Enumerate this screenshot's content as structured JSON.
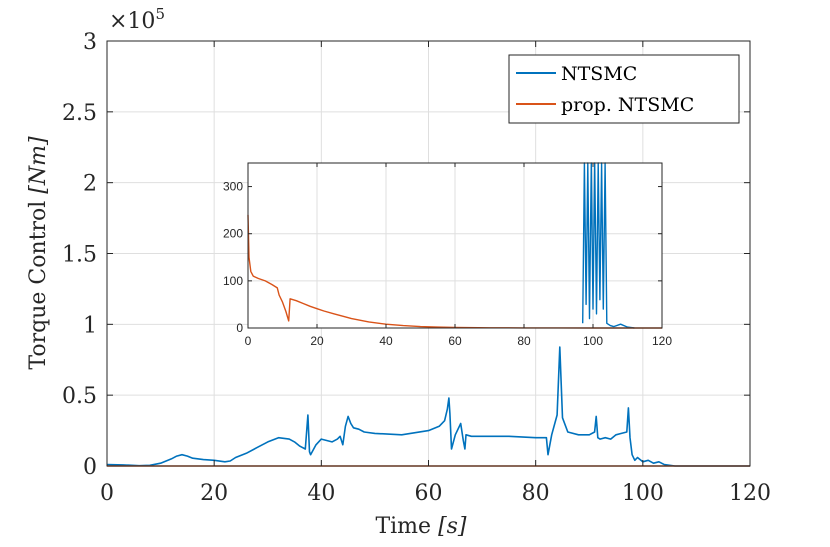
{
  "chart_data": [
    {
      "type": "line",
      "title": "",
      "xlabel": "Time [s]",
      "xlabel_main": "Time ",
      "xlabel_unit": "[s]",
      "ylabel": "Torque Control [Nm]",
      "ylabel_main": "Torque Control ",
      "ylabel_unit": "[Nm]",
      "y_multiplier_label": "×10",
      "y_multiplier_exp": "5",
      "xlim": [
        0,
        120
      ],
      "ylim": [
        0,
        3
      ],
      "xticks": [
        0,
        20,
        40,
        60,
        80,
        100,
        120
      ],
      "yticks": [
        0,
        0.5,
        1,
        1.5,
        2,
        2.5,
        3
      ],
      "xtick_labels": [
        "0",
        "20",
        "40",
        "60",
        "80",
        "100",
        "120"
      ],
      "ytick_labels": [
        "0",
        "0.5",
        "1",
        "1.5",
        "2",
        "2.5",
        "3"
      ],
      "grid": true,
      "legend_position": "top-right",
      "series": [
        {
          "name": "NTSMC",
          "color": "#0072BD",
          "x": [
            0,
            3,
            6,
            8,
            10,
            12,
            13,
            14,
            15,
            16,
            18,
            20,
            22,
            23,
            24,
            26,
            28,
            30,
            32,
            34,
            35,
            36,
            37,
            37.5,
            37.8,
            38,
            39,
            40,
            41,
            42,
            43,
            43.5,
            44,
            44.5,
            45,
            45.5,
            46,
            47,
            48,
            50,
            55,
            60,
            62,
            63,
            63.5,
            63.8,
            64,
            64.3,
            65,
            66,
            66.5,
            66.8,
            67,
            68,
            70,
            75,
            80,
            82,
            82.3,
            83,
            84,
            84.5,
            85,
            86,
            88,
            90,
            91,
            91.3,
            91.6,
            92,
            93,
            94,
            95,
            96,
            97,
            97.3,
            97.6,
            98,
            98.5,
            99,
            100,
            101,
            102,
            103,
            104,
            106,
            110,
            115,
            120
          ],
          "y": [
            0.01,
            0.008,
            0.002,
            0.005,
            0.02,
            0.05,
            0.07,
            0.08,
            0.07,
            0.055,
            0.045,
            0.04,
            0.03,
            0.035,
            0.06,
            0.09,
            0.13,
            0.17,
            0.2,
            0.19,
            0.17,
            0.14,
            0.12,
            0.36,
            0.1,
            0.08,
            0.15,
            0.19,
            0.18,
            0.17,
            0.19,
            0.21,
            0.15,
            0.28,
            0.35,
            0.3,
            0.27,
            0.26,
            0.24,
            0.23,
            0.22,
            0.25,
            0.28,
            0.32,
            0.4,
            0.48,
            0.37,
            0.12,
            0.22,
            0.3,
            0.18,
            0.12,
            0.22,
            0.21,
            0.21,
            0.21,
            0.2,
            0.2,
            0.08,
            0.22,
            0.36,
            0.84,
            0.34,
            0.24,
            0.22,
            0.22,
            0.24,
            0.35,
            0.2,
            0.19,
            0.2,
            0.19,
            0.22,
            0.23,
            0.24,
            0.41,
            0.2,
            0.08,
            0.04,
            0.06,
            0.03,
            0.04,
            0.02,
            0.03,
            0.01,
            0.0,
            0.0,
            0.0,
            0.0
          ]
        },
        {
          "name": "prop. NTSMC",
          "color": "#D95319",
          "x": [
            0,
            120
          ],
          "y": [
            0,
            0
          ]
        }
      ]
    },
    {
      "type": "line",
      "title": "",
      "xlim": [
        0,
        120
      ],
      "ylim": [
        0,
        350
      ],
      "xticks": [
        0,
        20,
        40,
        60,
        80,
        100,
        120
      ],
      "yticks": [
        0,
        100,
        200,
        300
      ],
      "xtick_labels": [
        "0",
        "20",
        "40",
        "60",
        "80",
        "100",
        "120"
      ],
      "ytick_labels": [
        "0",
        "100",
        "200",
        "300"
      ],
      "grid": true,
      "series": [
        {
          "name": "NTSMC",
          "color": "#0072BD",
          "x": [
            97,
            97.5,
            98,
            98.5,
            99,
            99.5,
            100,
            100.5,
            101,
            101.5,
            102,
            102.5,
            103,
            103.5,
            104,
            105,
            106,
            108,
            110,
            112
          ],
          "y": [
            10,
            350,
            50,
            350,
            20,
            350,
            40,
            350,
            30,
            350,
            60,
            350,
            40,
            350,
            10,
            5,
            3,
            8,
            2,
            0
          ]
        },
        {
          "name": "prop. NTSMC",
          "color": "#D95319",
          "x": [
            0,
            0.3,
            0.8,
            1.5,
            3,
            5,
            7,
            8.5,
            9,
            10,
            11,
            11.8,
            12.2,
            14,
            16,
            18,
            20,
            22,
            25,
            28,
            30,
            35,
            40,
            45,
            50,
            55,
            60,
            70,
            80,
            90,
            100,
            110,
            120
          ],
          "y": [
            240,
            150,
            120,
            110,
            105,
            100,
            92,
            85,
            70,
            55,
            35,
            15,
            62,
            58,
            52,
            46,
            41,
            36,
            30,
            24,
            20,
            13,
            8,
            5,
            3,
            2,
            1,
            0.5,
            0.3,
            0.2,
            0.1,
            0,
            0
          ]
        }
      ]
    }
  ]
}
